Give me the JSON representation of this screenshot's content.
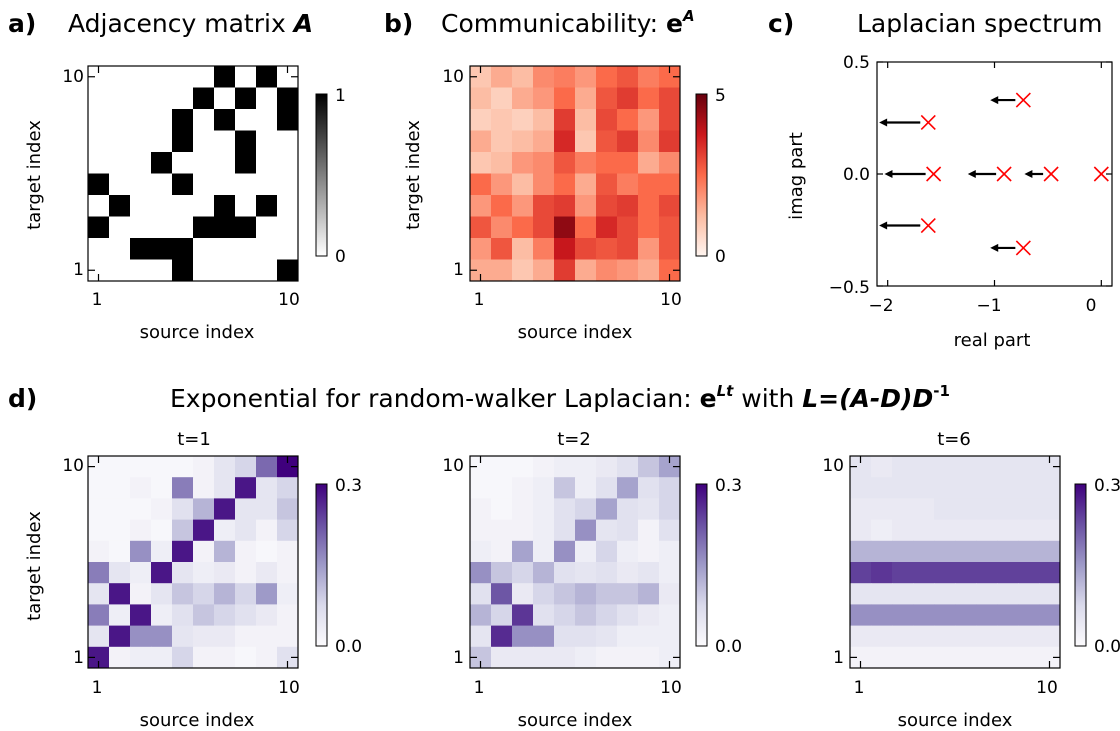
{
  "panels": {
    "a": {
      "letter": "a)",
      "title": "Adjacency matrix ",
      "title_symbol": "A",
      "xlabel": "source index",
      "ylabel": "target index",
      "ticks": {
        "x": [
          "1",
          "10"
        ],
        "y": [
          "1",
          "10"
        ]
      },
      "colorbar": {
        "min_label": "0",
        "max_label": "1",
        "colors": [
          "#ffffff",
          "#000000"
        ]
      }
    },
    "b": {
      "letter": "b)",
      "title": "Communicability: ",
      "title_base": "e",
      "title_sup": "A",
      "xlabel": "source index",
      "ylabel": "target index",
      "ticks": {
        "x": [
          "1",
          "10"
        ],
        "y": [
          "1",
          "10"
        ]
      },
      "colorbar": {
        "min_label": "0",
        "max_label": "5",
        "colors": [
          "#fff5f0",
          "#fcbba1",
          "#fb6a4a",
          "#cb181d",
          "#67000d"
        ]
      }
    },
    "c": {
      "letter": "c)",
      "title": "Laplacian spectrum",
      "xlabel": "real part",
      "ylabel": "imag part",
      "xticks": [
        "−2",
        "−1",
        "0"
      ],
      "yticks": [
        "−0.5",
        "0.0",
        "0.5"
      ],
      "marker_color": "#ff0000",
      "arrow_color": "#000000"
    },
    "d": {
      "letter": "d)",
      "title_pre": "Exponential for random-walker Laplacian: ",
      "title_base": "e",
      "title_sup": "Lt",
      "title_mid": " with ",
      "title_formula": "L=(A-D)D",
      "title_formula_sup": "-1",
      "xlabel": "source index",
      "ylabel": "target index",
      "ticks": {
        "x": [
          "1",
          "10"
        ],
        "y": [
          "1",
          "10"
        ]
      },
      "colorbar": {
        "min_label": "0.0",
        "max_label": "0.3",
        "colors": [
          "#fcfbfd",
          "#dadaeb",
          "#9e9ac8",
          "#6a51a3",
          "#3f007d"
        ]
      },
      "subplots": [
        {
          "title": "t=1"
        },
        {
          "title": "t=2"
        },
        {
          "title": "t=6"
        }
      ]
    }
  },
  "chart_data": [
    {
      "type": "heatmap",
      "id": "adjacency",
      "title": "Adjacency matrix A",
      "xlabel": "source index",
      "ylabel": "target index",
      "x": [
        1,
        2,
        3,
        4,
        5,
        6,
        7,
        8,
        9,
        10
      ],
      "y": [
        1,
        2,
        3,
        4,
        5,
        6,
        7,
        8,
        9,
        10
      ],
      "vmin": 0,
      "vmax": 1,
      "rows_top_to_bottom": [
        [
          0,
          0,
          0,
          0,
          0,
          0,
          1,
          0,
          1,
          0
        ],
        [
          0,
          0,
          0,
          0,
          0,
          1,
          0,
          1,
          0,
          1
        ],
        [
          0,
          0,
          0,
          0,
          1,
          0,
          1,
          0,
          0,
          1
        ],
        [
          0,
          0,
          0,
          0,
          1,
          0,
          0,
          1,
          0,
          0
        ],
        [
          0,
          0,
          0,
          1,
          0,
          0,
          0,
          1,
          0,
          0
        ],
        [
          1,
          0,
          0,
          0,
          1,
          0,
          0,
          0,
          0,
          0
        ],
        [
          0,
          1,
          0,
          0,
          0,
          0,
          1,
          0,
          1,
          0
        ],
        [
          1,
          0,
          0,
          0,
          0,
          1,
          1,
          1,
          0,
          0
        ],
        [
          0,
          0,
          1,
          1,
          1,
          0,
          0,
          0,
          0,
          0
        ],
        [
          0,
          0,
          0,
          0,
          1,
          0,
          0,
          0,
          0,
          1
        ]
      ]
    },
    {
      "type": "heatmap",
      "id": "communicability",
      "title": "Communicability: e^A",
      "xlabel": "source index",
      "ylabel": "target index",
      "x": [
        1,
        2,
        3,
        4,
        5,
        6,
        7,
        8,
        9,
        10
      ],
      "y": [
        1,
        2,
        3,
        4,
        5,
        6,
        7,
        8,
        9,
        10
      ],
      "vmin": 0,
      "vmax": 5,
      "rows_top_to_bottom": [
        [
          1.0,
          1.5,
          1.2,
          2.0,
          2.2,
          1.8,
          2.5,
          2.8,
          2.2,
          2.5
        ],
        [
          1.2,
          0.8,
          1.5,
          1.8,
          2.5,
          1.5,
          2.8,
          3.2,
          2.5,
          3.0
        ],
        [
          0.8,
          1.0,
          0.8,
          1.2,
          3.2,
          1.2,
          3.0,
          2.5,
          1.8,
          3.0
        ],
        [
          1.5,
          1.0,
          1.2,
          1.5,
          3.5,
          1.0,
          2.8,
          3.2,
          2.0,
          3.2
        ],
        [
          1.0,
          1.2,
          1.8,
          2.0,
          2.8,
          2.2,
          2.5,
          2.5,
          1.5,
          2.0
        ],
        [
          2.5,
          1.8,
          1.2,
          2.0,
          2.5,
          1.5,
          2.8,
          2.2,
          2.5,
          2.5
        ],
        [
          1.8,
          2.5,
          1.8,
          3.0,
          3.2,
          1.8,
          3.0,
          3.2,
          2.5,
          3.0
        ],
        [
          2.8,
          2.0,
          2.5,
          3.0,
          4.5,
          2.5,
          3.5,
          3.0,
          2.5,
          2.8
        ],
        [
          1.8,
          2.8,
          1.2,
          2.2,
          3.8,
          3.0,
          2.8,
          3.0,
          1.8,
          2.8
        ],
        [
          1.5,
          1.5,
          1.0,
          1.5,
          3.2,
          1.5,
          2.0,
          1.8,
          1.5,
          2.5
        ]
      ]
    },
    {
      "type": "scatter",
      "id": "laplacian-spectrum",
      "title": "Laplacian spectrum",
      "xlabel": "real part",
      "ylabel": "imag part",
      "xlim": [
        -2.1,
        0.1
      ],
      "ylim": [
        -0.5,
        0.5
      ],
      "grid": false,
      "points": [
        {
          "x": -1.62,
          "y": 0.23
        },
        {
          "x": -0.73,
          "y": 0.33
        },
        {
          "x": -1.57,
          "y": 0.0
        },
        {
          "x": -0.91,
          "y": 0.0
        },
        {
          "x": -0.47,
          "y": 0.0
        },
        {
          "x": 0.0,
          "y": 0.0
        },
        {
          "x": -1.62,
          "y": -0.23
        },
        {
          "x": -0.73,
          "y": -0.33
        }
      ],
      "arrows": [
        {
          "from": [
            -1.62,
            0.23
          ],
          "to": [
            -2.08,
            0.23
          ]
        },
        {
          "from": [
            -0.73,
            0.33
          ],
          "to": [
            -1.04,
            0.33
          ]
        },
        {
          "from": [
            -1.57,
            0.0
          ],
          "to": [
            -2.03,
            0.0
          ]
        },
        {
          "from": [
            -0.91,
            0.0
          ],
          "to": [
            -1.25,
            0.0
          ]
        },
        {
          "from": [
            -0.47,
            0.0
          ],
          "to": [
            -0.72,
            0.0
          ]
        },
        {
          "from": [
            -1.62,
            -0.23
          ],
          "to": [
            -2.08,
            -0.23
          ]
        },
        {
          "from": [
            -0.73,
            -0.33
          ],
          "to": [
            -1.04,
            -0.33
          ]
        }
      ]
    },
    {
      "type": "heatmap",
      "id": "walker-t1",
      "title": "t=1",
      "xlabel": "source index",
      "ylabel": "target index",
      "x": [
        1,
        2,
        3,
        4,
        5,
        6,
        7,
        8,
        9,
        10
      ],
      "y": [
        1,
        2,
        3,
        4,
        5,
        6,
        7,
        8,
        9,
        10
      ],
      "vmin": 0,
      "vmax": 0.3,
      "rows_top_to_bottom": [
        [
          0.01,
          0.01,
          0.01,
          0.01,
          0.01,
          0.02,
          0.05,
          0.08,
          0.2,
          0.3
        ],
        [
          0.01,
          0.01,
          0.02,
          0.01,
          0.18,
          0.02,
          0.05,
          0.28,
          0.05,
          0.08
        ],
        [
          0.01,
          0.01,
          0.01,
          0.02,
          0.06,
          0.12,
          0.28,
          0.05,
          0.05,
          0.1
        ],
        [
          0.01,
          0.01,
          0.02,
          0.01,
          0.1,
          0.28,
          0.03,
          0.05,
          0.02,
          0.08
        ],
        [
          0.02,
          0.01,
          0.16,
          0.03,
          0.28,
          0.02,
          0.12,
          0.02,
          0.01,
          0.02
        ],
        [
          0.18,
          0.05,
          0.03,
          0.28,
          0.05,
          0.03,
          0.04,
          0.02,
          0.04,
          0.02
        ],
        [
          0.05,
          0.28,
          0.02,
          0.05,
          0.1,
          0.08,
          0.12,
          0.08,
          0.15,
          0.03
        ],
        [
          0.18,
          0.03,
          0.28,
          0.03,
          0.06,
          0.1,
          0.08,
          0.06,
          0.04,
          0.02
        ],
        [
          0.05,
          0.28,
          0.16,
          0.16,
          0.05,
          0.04,
          0.04,
          0.02,
          0.02,
          0.02
        ],
        [
          0.28,
          0.02,
          0.03,
          0.03,
          0.08,
          0.02,
          0.02,
          0.01,
          0.02,
          0.06
        ]
      ]
    },
    {
      "type": "heatmap",
      "id": "walker-t2",
      "title": "t=2",
      "xlabel": "source index",
      "ylabel": "target index",
      "x": [
        1,
        2,
        3,
        4,
        5,
        6,
        7,
        8,
        9,
        10
      ],
      "y": [
        1,
        2,
        3,
        4,
        5,
        6,
        7,
        8,
        9,
        10
      ],
      "vmin": 0,
      "vmax": 0.3,
      "rows_top_to_bottom": [
        [
          0.01,
          0.01,
          0.01,
          0.02,
          0.03,
          0.03,
          0.04,
          0.06,
          0.1,
          0.14
        ],
        [
          0.01,
          0.01,
          0.02,
          0.03,
          0.1,
          0.03,
          0.06,
          0.14,
          0.06,
          0.08
        ],
        [
          0.02,
          0.01,
          0.02,
          0.03,
          0.06,
          0.08,
          0.14,
          0.06,
          0.05,
          0.08
        ],
        [
          0.02,
          0.02,
          0.02,
          0.03,
          0.06,
          0.16,
          0.05,
          0.06,
          0.02,
          0.06
        ],
        [
          0.03,
          0.02,
          0.14,
          0.03,
          0.16,
          0.03,
          0.08,
          0.03,
          0.02,
          0.03
        ],
        [
          0.16,
          0.1,
          0.08,
          0.12,
          0.06,
          0.05,
          0.06,
          0.04,
          0.05,
          0.03
        ],
        [
          0.06,
          0.22,
          0.04,
          0.08,
          0.1,
          0.12,
          0.1,
          0.1,
          0.12,
          0.04
        ],
        [
          0.12,
          0.08,
          0.25,
          0.06,
          0.08,
          0.1,
          0.08,
          0.06,
          0.04,
          0.03
        ],
        [
          0.05,
          0.26,
          0.16,
          0.16,
          0.06,
          0.06,
          0.05,
          0.03,
          0.03,
          0.03
        ],
        [
          0.1,
          0.04,
          0.04,
          0.04,
          0.04,
          0.03,
          0.02,
          0.02,
          0.02,
          0.03
        ]
      ]
    },
    {
      "type": "heatmap",
      "id": "walker-t6",
      "title": "t=6",
      "xlabel": "source index",
      "ylabel": "target index",
      "x": [
        1,
        2,
        3,
        4,
        5,
        6,
        7,
        8,
        9,
        10
      ],
      "y": [
        1,
        2,
        3,
        4,
        5,
        6,
        7,
        8,
        9,
        10
      ],
      "vmin": 0,
      "vmax": 0.3,
      "rows_top_to_bottom": [
        [
          0.05,
          0.04,
          0.05,
          0.05,
          0.05,
          0.05,
          0.05,
          0.05,
          0.05,
          0.05
        ],
        [
          0.05,
          0.05,
          0.05,
          0.05,
          0.05,
          0.05,
          0.05,
          0.05,
          0.05,
          0.05
        ],
        [
          0.04,
          0.04,
          0.04,
          0.04,
          0.05,
          0.05,
          0.05,
          0.05,
          0.05,
          0.05
        ],
        [
          0.04,
          0.03,
          0.04,
          0.04,
          0.04,
          0.04,
          0.04,
          0.04,
          0.04,
          0.04
        ],
        [
          0.12,
          0.12,
          0.12,
          0.12,
          0.12,
          0.12,
          0.12,
          0.12,
          0.12,
          0.12
        ],
        [
          0.24,
          0.25,
          0.24,
          0.24,
          0.24,
          0.24,
          0.24,
          0.24,
          0.24,
          0.24
        ],
        [
          0.05,
          0.05,
          0.05,
          0.05,
          0.05,
          0.05,
          0.05,
          0.05,
          0.05,
          0.05
        ],
        [
          0.16,
          0.16,
          0.16,
          0.16,
          0.16,
          0.16,
          0.16,
          0.16,
          0.16,
          0.16
        ],
        [
          0.04,
          0.04,
          0.04,
          0.04,
          0.04,
          0.04,
          0.04,
          0.04,
          0.04,
          0.04
        ],
        [
          0.02,
          0.02,
          0.02,
          0.02,
          0.02,
          0.02,
          0.02,
          0.02,
          0.02,
          0.02
        ]
      ]
    }
  ]
}
